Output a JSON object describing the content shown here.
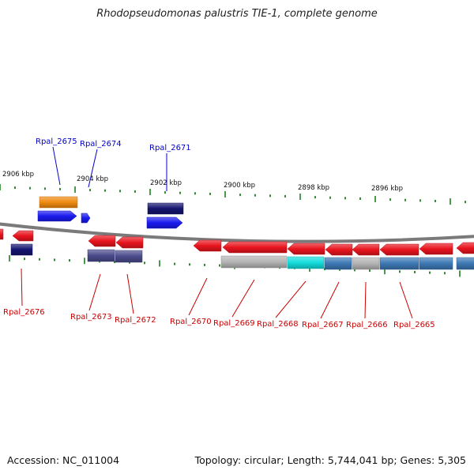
{
  "title": "Rhodopseudomonas palustris TIE-1, complete genome",
  "footer": {
    "accession": "Accession: NC_011004",
    "topology": "Topology: circular; Length: 5,744,041 bp; Genes: 5,305"
  },
  "colors": {
    "backbone": "#7a7a7a",
    "tick": "#1e7d1e",
    "label_forward": "#0000cc",
    "label_reverse": "#cc0000",
    "gene_red": "#e8141e",
    "gene_blue": "#1a1aee",
    "gene_orange": "#f08a10",
    "gene_navy": "#141470",
    "gene_slate": "#4a4a8c",
    "gene_grey": "#b4b4b4",
    "gene_cyan": "#14dcdc",
    "gene_steel": "#3c78b4"
  },
  "scale_labels": [
    "2906 kbp",
    "2904 kbp",
    "2902 kbp",
    "2900 kbp",
    "2898 kbp",
    "2896 kbp"
  ],
  "top_gene_labels": [
    "Rpal_2675",
    "Rpal_2674",
    "Rpal_2671"
  ],
  "bottom_gene_labels": [
    "Rpal_2676",
    "Rpal_2673",
    "Rpal_2672",
    "Rpal_2670",
    "Rpal_2669",
    "Rpal_2668",
    "Rpal_2667",
    "Rpal_2666",
    "Rpal_2665"
  ]
}
